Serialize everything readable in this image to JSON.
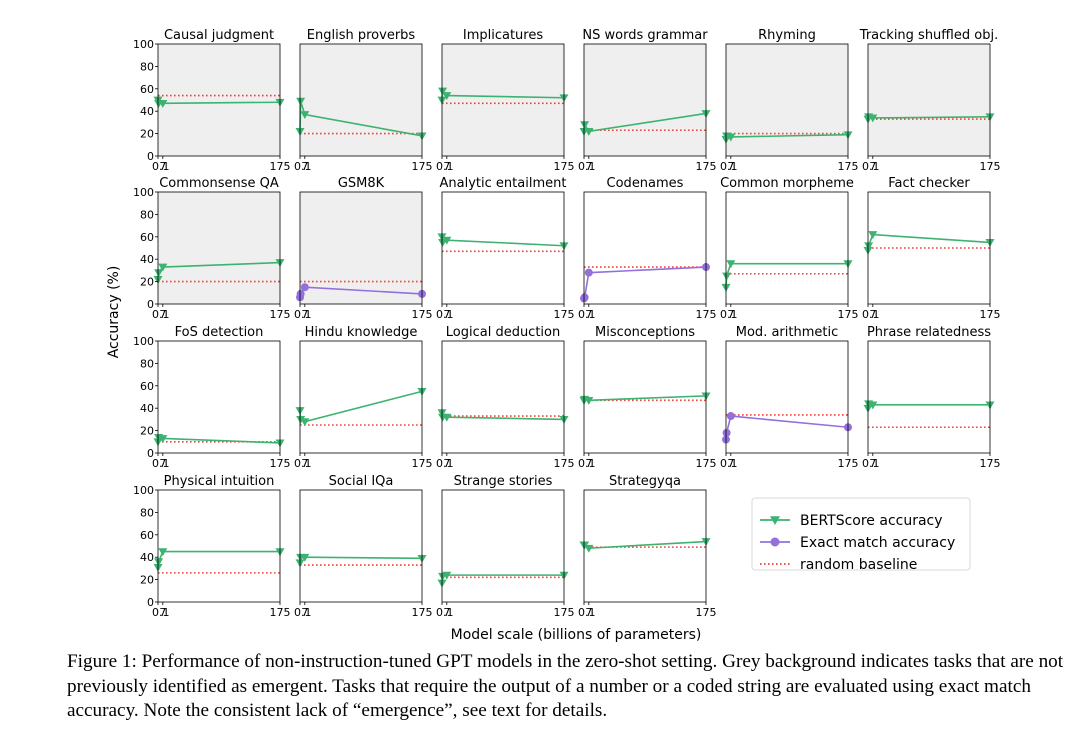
{
  "figure": {
    "ylabel": "Accuracy (%)",
    "xlabel": "Model scale (billions of parameters)",
    "caption": "Figure 1: Performance of non-instruction-tuned GPT models in the zero-shot setting. Grey background indicates tasks that are not previously identified as emergent. Tasks that require the output of a number or a coded string are evaluated using exact match accuracy. Note the consistent lack of “emergence”, see text for details.",
    "legend": {
      "bert": "BERTScore accuracy",
      "exact": "Exact match accuracy",
      "random": "random baseline"
    },
    "colors": {
      "bert": "#3cb371",
      "exact": "#9370db",
      "random": "#e8453c",
      "grey_bg": "#efefef"
    }
  },
  "chart_data": [
    {
      "type": "line",
      "title": "Causal judgment",
      "grey": true,
      "metric": "bert",
      "x": [
        0.1,
        1,
        7,
        175
      ],
      "y": [
        50,
        47,
        47,
        48
      ],
      "baseline": 54,
      "ylim": [
        0,
        100
      ],
      "xticks": [
        "0.1",
        "7",
        "175"
      ],
      "yticks": [
        0,
        20,
        40,
        60,
        80,
        100
      ]
    },
    {
      "type": "line",
      "title": "English proverbs",
      "grey": true,
      "metric": "bert",
      "x": [
        0.1,
        1,
        7,
        175
      ],
      "y": [
        22,
        49,
        37,
        18
      ],
      "baseline": 20,
      "ylim": [
        0,
        100
      ],
      "xticks": [
        "0.1",
        "7",
        "175"
      ]
    },
    {
      "type": "line",
      "title": "Implicatures",
      "grey": true,
      "metric": "bert",
      "x": [
        0.1,
        1,
        7,
        175
      ],
      "y": [
        50,
        58,
        54,
        52
      ],
      "baseline": 47,
      "ylim": [
        0,
        100
      ],
      "xticks": [
        "0.1",
        "7",
        "175"
      ]
    },
    {
      "type": "line",
      "title": "NS words grammar",
      "grey": true,
      "metric": "bert",
      "x": [
        0.1,
        1,
        7,
        175
      ],
      "y": [
        22,
        28,
        22,
        38
      ],
      "baseline": 23,
      "ylim": [
        0,
        100
      ],
      "xticks": [
        "0.1",
        "7",
        "175"
      ]
    },
    {
      "type": "line",
      "title": "Rhyming",
      "grey": true,
      "metric": "bert",
      "x": [
        0.1,
        1,
        7,
        175
      ],
      "y": [
        15,
        18,
        17,
        19
      ],
      "baseline": 20,
      "ylim": [
        0,
        100
      ],
      "xticks": [
        "0.1",
        "7",
        "175"
      ]
    },
    {
      "type": "line",
      "title": "Tracking shuffled obj.",
      "grey": true,
      "metric": "bert",
      "x": [
        0.1,
        1,
        7,
        175
      ],
      "y": [
        33,
        35,
        34,
        35
      ],
      "baseline": 33,
      "ylim": [
        0,
        100
      ],
      "xticks": [
        "0.1",
        "7",
        "175"
      ]
    },
    {
      "type": "line",
      "title": "Commonsense QA",
      "grey": true,
      "metric": "bert",
      "x": [
        0.1,
        1,
        7,
        175
      ],
      "y": [
        22,
        28,
        33,
        37
      ],
      "baseline": 20,
      "ylim": [
        0,
        100
      ],
      "xticks": [
        "0.1",
        "7",
        "175"
      ],
      "yticks": [
        0,
        20,
        40,
        60,
        80,
        100
      ]
    },
    {
      "type": "line",
      "title": "GSM8K",
      "grey": true,
      "metric": "exact",
      "x": [
        0.1,
        1,
        7,
        175
      ],
      "y": [
        6,
        9,
        15,
        9
      ],
      "baseline": 20,
      "ylim": [
        0,
        100
      ],
      "xticks": [
        "0.1",
        "7",
        "175"
      ]
    },
    {
      "type": "line",
      "title": "Analytic entailment",
      "grey": false,
      "metric": "bert",
      "x": [
        0.1,
        1,
        7,
        175
      ],
      "y": [
        60,
        55,
        57,
        52
      ],
      "baseline": 47,
      "ylim": [
        0,
        100
      ],
      "xticks": [
        "0.1",
        "7",
        "175"
      ]
    },
    {
      "type": "line",
      "title": "Codenames",
      "grey": false,
      "metric": "exact",
      "x": [
        0.1,
        1,
        7,
        175
      ],
      "y": [
        5,
        6,
        28,
        33
      ],
      "baseline": 33,
      "ylim": [
        0,
        100
      ],
      "xticks": [
        "0.1",
        "7",
        "175"
      ]
    },
    {
      "type": "line",
      "title": "Common morpheme",
      "grey": false,
      "metric": "bert",
      "x": [
        0.1,
        1,
        7,
        175
      ],
      "y": [
        15,
        25,
        36,
        36
      ],
      "baseline": 27,
      "ylim": [
        0,
        100
      ],
      "xticks": [
        "0.1",
        "7",
        "175"
      ]
    },
    {
      "type": "line",
      "title": "Fact checker",
      "grey": false,
      "metric": "bert",
      "x": [
        0.1,
        1,
        7,
        175
      ],
      "y": [
        48,
        52,
        62,
        55
      ],
      "baseline": 50,
      "ylim": [
        0,
        100
      ],
      "xticks": [
        "0.1",
        "7",
        "175"
      ]
    },
    {
      "type": "line",
      "title": "FoS detection",
      "grey": false,
      "metric": "bert",
      "x": [
        0.1,
        1,
        7,
        175
      ],
      "y": [
        10,
        14,
        13,
        9
      ],
      "baseline": 10,
      "ylim": [
        0,
        100
      ],
      "xticks": [
        "0.1",
        "7",
        "175"
      ],
      "yticks": [
        0,
        20,
        40,
        60,
        80,
        100
      ]
    },
    {
      "type": "line",
      "title": "Hindu knowledge",
      "grey": false,
      "metric": "bert",
      "x": [
        0.1,
        1,
        7,
        175
      ],
      "y": [
        38,
        30,
        28,
        55
      ],
      "baseline": 25,
      "ylim": [
        0,
        100
      ],
      "xticks": [
        "0.1",
        "7",
        "175"
      ]
    },
    {
      "type": "line",
      "title": "Logical deduction",
      "grey": false,
      "metric": "bert",
      "x": [
        0.1,
        1,
        7,
        175
      ],
      "y": [
        36,
        32,
        32,
        30
      ],
      "baseline": 33,
      "ylim": [
        0,
        100
      ],
      "xticks": [
        "0.1",
        "7",
        "175"
      ]
    },
    {
      "type": "line",
      "title": "Misconceptions",
      "grey": false,
      "metric": "bert",
      "x": [
        0.1,
        1,
        7,
        175
      ],
      "y": [
        47,
        48,
        47,
        51
      ],
      "baseline": 47,
      "ylim": [
        0,
        100
      ],
      "xticks": [
        "0.1",
        "7",
        "175"
      ]
    },
    {
      "type": "line",
      "title": "Mod. arithmetic",
      "grey": false,
      "metric": "exact",
      "x": [
        0.1,
        1,
        7,
        175
      ],
      "y": [
        12,
        18,
        33,
        23
      ],
      "baseline": 34,
      "ylim": [
        0,
        100
      ],
      "xticks": [
        "0.1",
        "7",
        "175"
      ]
    },
    {
      "type": "line",
      "title": "Phrase relatedness",
      "grey": false,
      "metric": "bert",
      "x": [
        0.1,
        1,
        7,
        175
      ],
      "y": [
        40,
        44,
        43,
        43
      ],
      "baseline": 23,
      "ylim": [
        0,
        100
      ],
      "xticks": [
        "0.1",
        "7",
        "175"
      ]
    },
    {
      "type": "line",
      "title": "Physical intuition",
      "grey": false,
      "metric": "bert",
      "x": [
        0.1,
        1,
        7,
        175
      ],
      "y": [
        31,
        36,
        45,
        45
      ],
      "baseline": 26,
      "ylim": [
        0,
        100
      ],
      "xticks": [
        "0.1",
        "7",
        "175"
      ],
      "yticks": [
        0,
        20,
        40,
        60,
        80,
        100
      ]
    },
    {
      "type": "line",
      "title": "Social IQa",
      "grey": false,
      "metric": "bert",
      "x": [
        0.1,
        1,
        7,
        175
      ],
      "y": [
        35,
        40,
        40,
        39
      ],
      "baseline": 33,
      "ylim": [
        0,
        100
      ],
      "xticks": [
        "0.1",
        "7",
        "175"
      ]
    },
    {
      "type": "line",
      "title": "Strange stories",
      "grey": false,
      "metric": "bert",
      "x": [
        0.1,
        1,
        7,
        175
      ],
      "y": [
        17,
        23,
        24,
        24
      ],
      "baseline": 22,
      "ylim": [
        0,
        100
      ],
      "xticks": [
        "0.1",
        "7",
        "175"
      ]
    },
    {
      "type": "line",
      "title": "Strategyqa",
      "grey": false,
      "metric": "bert",
      "x": [
        0.1,
        1,
        7,
        175
      ],
      "y": [
        51,
        51,
        48,
        54
      ],
      "baseline": 49,
      "ylim": [
        0,
        100
      ],
      "xticks": [
        "0.1",
        "7",
        "175"
      ]
    }
  ]
}
